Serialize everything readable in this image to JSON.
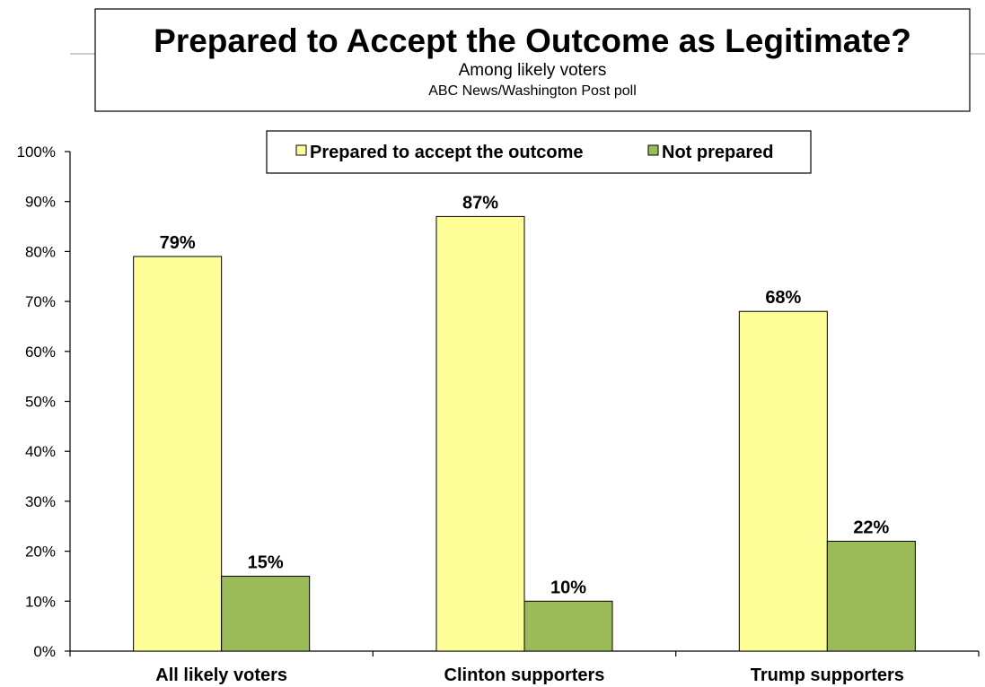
{
  "chart_data": {
    "type": "bar",
    "title": "Prepared to Accept the Outcome as Legitimate?",
    "subtitle": "Among likely voters",
    "source": "ABC News/Washington  Post poll",
    "categories": [
      "All likely voters",
      "Clinton supporters",
      "Trump supporters"
    ],
    "series": [
      {
        "name": "Prepared to accept the outcome",
        "values": [
          79,
          87,
          68
        ],
        "labels": [
          "79%",
          "87%",
          "68%"
        ],
        "color": "#FFFF99"
      },
      {
        "name": "Not prepared",
        "values": [
          15,
          10,
          22
        ],
        "labels": [
          "15%",
          "10%",
          "22%"
        ],
        "color": "#9BBB59"
      }
    ],
    "ylim": [
      0,
      100
    ],
    "yticks": [
      "0%",
      "10%",
      "20%",
      "30%",
      "40%",
      "50%",
      "60%",
      "70%",
      "80%",
      "90%",
      "100%"
    ],
    "xlabel": "",
    "ylabel": "",
    "grid": false,
    "legend": "top-center"
  }
}
